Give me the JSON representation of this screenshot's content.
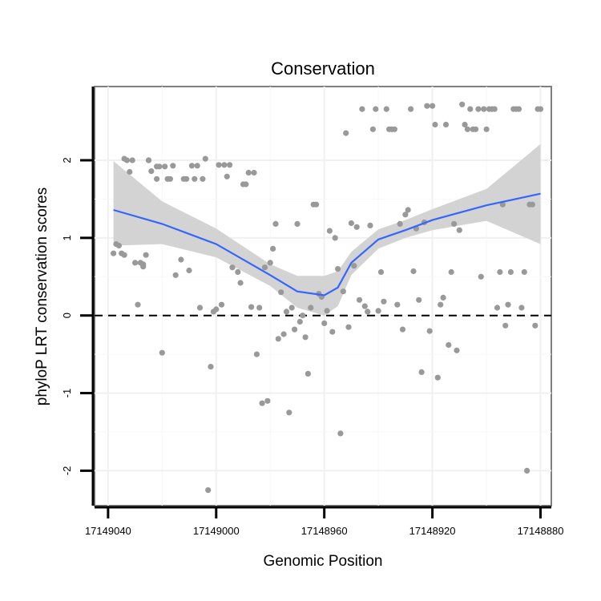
{
  "chart_data": {
    "type": "scatter",
    "title": "Conservation",
    "xlabel": "Genomic Position",
    "ylabel": "phyloP LRT conservation scores",
    "x_reversed": true,
    "xlim": [
      17149045,
      17148876
    ],
    "ylim": [
      -2.45,
      2.95
    ],
    "x_ticks": [
      17149040,
      17149000,
      17148960,
      17148920,
      17148880
    ],
    "x_tick_labels": [
      "17149040",
      "17149000",
      "17148960",
      "17148920",
      "17148880"
    ],
    "y_ticks": [
      -2,
      -1,
      0,
      1,
      2
    ],
    "y_tick_labels": [
      "-2",
      "-1",
      "0",
      "1",
      "2"
    ],
    "reference_line": {
      "y": 0,
      "style": "dashed"
    },
    "smooth": {
      "method": "loess",
      "x": [
        17149038,
        17149020,
        17149000,
        17148980,
        17148970,
        17148960,
        17148955,
        17148950,
        17148940,
        17148930,
        17148920,
        17148900,
        17148880
      ],
      "y": [
        1.36,
        1.18,
        0.92,
        0.52,
        0.31,
        0.26,
        0.36,
        0.68,
        0.98,
        1.1,
        1.23,
        1.42,
        1.57
      ],
      "lower": [
        0.9,
        0.92,
        0.75,
        0.38,
        0.1,
        0.0,
        0.12,
        0.52,
        0.86,
        1.0,
        1.1,
        1.22,
        0.92
      ],
      "upper": [
        1.99,
        1.47,
        1.12,
        0.66,
        0.51,
        0.51,
        0.57,
        0.82,
        1.11,
        1.23,
        1.37,
        1.63,
        2.21
      ]
    },
    "series": [
      {
        "name": "points",
        "x": [
          17149038,
          17149037,
          17149036,
          17149035,
          17149034,
          17149034,
          17149033,
          17149032,
          17149031,
          17149030,
          17149029,
          17149028,
          17149027,
          17149027,
          17149026,
          17149025,
          17149025,
          17149024,
          17149022,
          17149022,
          17149021,
          17149020,
          17149019,
          17149018,
          17149017,
          17149016,
          17149015,
          17149013,
          17149012,
          17149011,
          17149010,
          17149009,
          17149008,
          17149007,
          17149006,
          17149005,
          17149004,
          17149003,
          17149002,
          17149001,
          17149000,
          17148999,
          17148998,
          17148997,
          17148996,
          17148995,
          17148994,
          17148992,
          17148991,
          17148990,
          17148989,
          17148988,
          17148987,
          17148986,
          17148985,
          17148984,
          17148983,
          17148982,
          17148981,
          17148980,
          17148979,
          17148978,
          17148977,
          17148976,
          17148975,
          17148974,
          17148973,
          17148972,
          17148971,
          17148970,
          17148969,
          17148968,
          17148967,
          17148966,
          17148965,
          17148964,
          17148963,
          17148962,
          17148961,
          17148960,
          17148959,
          17148958,
          17148957,
          17148956,
          17148955,
          17148954,
          17148953,
          17148952,
          17148951,
          17148950,
          17148949,
          17148948,
          17148947,
          17148946,
          17148945,
          17148944,
          17148943,
          17148942,
          17148941,
          17148940,
          17148939,
          17148938,
          17148937,
          17148936,
          17148935,
          17148934,
          17148933,
          17148932,
          17148931,
          17148930,
          17148929,
          17148928,
          17148927,
          17148926,
          17148925,
          17148924,
          17148923,
          17148922,
          17148921,
          17148920,
          17148919,
          17148918,
          17148917,
          17148916,
          17148915,
          17148914,
          17148913,
          17148912,
          17148911,
          17148910,
          17148909,
          17148908,
          17148907,
          17148906,
          17148905,
          17148904,
          17148903,
          17148902,
          17148901,
          17148900,
          17148899,
          17148898,
          17148897,
          17148896,
          17148895,
          17148894,
          17148893,
          17148892,
          17148891,
          17148890,
          17148889,
          17148888,
          17148887,
          17148886,
          17148885,
          17148884,
          17148883,
          17148882,
          17148881,
          17148880
        ],
        "y": [
          0.8,
          0.92,
          0.9,
          0.8,
          0.78,
          2.02,
          2.0,
          1.85,
          2.0,
          0.68,
          0.14,
          0.68,
          0.66,
          0.63,
          0.78,
          2.0,
          2.0,
          1.86,
          1.92,
          1.76,
          1.92,
          -0.48,
          1.92,
          1.76,
          1.76,
          1.93,
          0.52,
          0.72,
          1.76,
          1.76,
          0.58,
          1.93,
          1.76,
          1.93,
          0.1,
          1.76,
          2.02,
          -2.25,
          -0.66,
          0.05,
          0.08,
          1.94,
          0.14,
          1.94,
          1.79,
          1.94,
          0.62,
          0.56,
          0.42,
          1.69,
          1.69,
          1.84,
          0.11,
          1.84,
          -0.5,
          0.1,
          -1.13,
          0.62,
          -1.1,
          0.68,
          0.86,
          1.18,
          -0.3,
          0.3,
          -0.24,
          0.05,
          -1.25,
          0.1,
          -0.18,
          1.18,
          -0.08,
          0.0,
          -0.28,
          -0.75,
          0.1,
          1.43,
          1.43,
          0.28,
          0.24,
          -0.1,
          0.06,
          1.09,
          -0.21,
          1.0,
          0.6,
          -1.52,
          0.31,
          2.35,
          -0.15,
          1.19,
          0.64,
          1.14,
          0.2,
          2.66,
          0.12,
          0.05,
          1.16,
          2.4,
          2.66,
          0.06,
          0.56,
          0.18,
          2.66,
          2.4,
          2.4,
          2.4,
          0.14,
          1.18,
          -0.18,
          1.3,
          1.36,
          2.66,
          0.57,
          1.12,
          0.2,
          -0.73,
          1.2,
          2.7,
          -0.2,
          2.7,
          2.46,
          -0.8,
          0.14,
          0.23,
          2.46,
          -0.38,
          0.56,
          1.18,
          -0.45,
          1.1,
          2.72,
          2.46,
          2.4,
          2.66,
          2.4,
          2.4,
          2.66,
          0.5,
          2.66,
          2.4,
          2.66,
          2.66,
          2.66,
          0.1,
          0.56,
          1.43,
          -0.13,
          0.14,
          0.56,
          2.66,
          2.66,
          2.66,
          0.1,
          0.56,
          -2.0,
          1.43,
          1.43,
          -0.13,
          2.66,
          2.66
        ]
      }
    ]
  }
}
